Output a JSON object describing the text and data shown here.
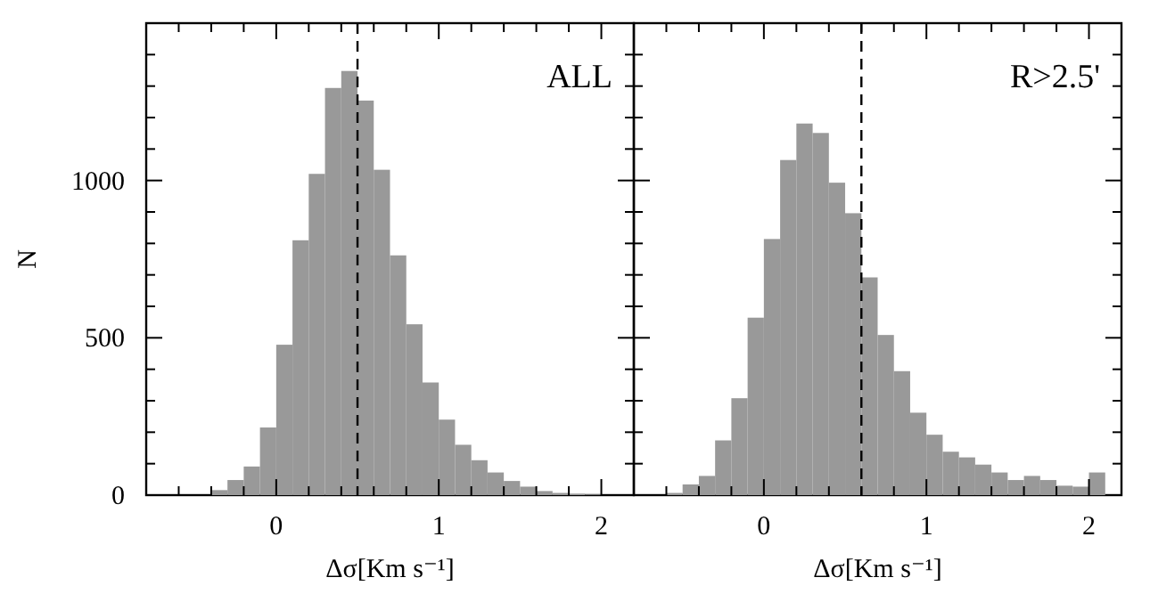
{
  "chart_data": [
    {
      "type": "histogram",
      "xlabel": "Δσ[Km s⁻¹]",
      "ylabel": "N",
      "annotations": [
        "ALL"
      ],
      "bins": [
        -0.4,
        -0.3,
        -0.2,
        -0.1,
        0,
        0.1,
        0.2,
        0.3,
        0.4,
        0.5,
        0.6,
        0.7,
        0.8,
        0.9,
        1.0,
        1.1,
        1.2,
        1.3,
        1.4,
        1.5,
        1.6,
        1.7,
        1.8,
        1.9,
        2.0
      ],
      "values": [
        16,
        48,
        91,
        215,
        478,
        810,
        1021,
        1294,
        1348,
        1254,
        1034,
        762,
        543,
        358,
        240,
        160,
        111,
        72,
        45,
        27,
        13,
        7,
        4,
        2
      ],
      "color": "#999999",
      "xlim": [
        -0.8,
        2.2
      ],
      "ylim": [
        0,
        1500
      ],
      "xticks": [
        {
          "value": -0.6,
          "label": null
        },
        {
          "value": -0.4,
          "label": null
        },
        {
          "value": -0.2,
          "label": null
        },
        0,
        {
          "value": 0.2,
          "label": null
        },
        {
          "value": 0.4,
          "label": null
        },
        {
          "value": 0.6,
          "label": null
        },
        {
          "value": 0.8,
          "label": null
        },
        1,
        {
          "value": 1.2,
          "label": null
        },
        {
          "value": 1.4,
          "label": null
        },
        {
          "value": 1.6,
          "label": null
        },
        {
          "value": 1.8,
          "label": null
        },
        2
      ],
      "yticks": [
        0,
        {
          "value": 100,
          "label": null
        },
        {
          "value": 200,
          "label": null
        },
        {
          "value": 300,
          "label": null
        },
        {
          "value": 400,
          "label": null
        },
        500,
        {
          "value": 600,
          "label": null
        },
        {
          "value": 700,
          "label": null
        },
        {
          "value": 800,
          "label": null
        },
        {
          "value": 900,
          "label": null
        },
        1000,
        {
          "value": 1100,
          "label": null
        },
        {
          "value": 1200,
          "label": null
        },
        {
          "value": 1300,
          "label": null
        },
        {
          "value": 1400,
          "label": null
        }
      ],
      "ref_lines": [
        {
          "axis": "x",
          "value": 0.5,
          "line_style": "dashed",
          "color": "#000000"
        }
      ]
    },
    {
      "type": "histogram",
      "xlabel": "Δσ[Km s⁻¹]",
      "annotations": [
        "R>2.5'"
      ],
      "tick_labels": "x",
      "bins": [
        -0.6,
        -0.5,
        -0.4,
        -0.3,
        -0.2,
        -0.1,
        0,
        0.1,
        0.2,
        0.3,
        0.4,
        0.5,
        0.6,
        0.7,
        0.8,
        0.9,
        1.0,
        1.1,
        1.2,
        1.3,
        1.4,
        1.5,
        1.6,
        1.7,
        1.8,
        1.9,
        2.0,
        2.1
      ],
      "values": [
        7,
        34,
        61,
        174,
        308,
        564,
        814,
        1065,
        1181,
        1151,
        993,
        896,
        692,
        509,
        394,
        262,
        192,
        138,
        120,
        97,
        72,
        48,
        61,
        48,
        30,
        27,
        72
      ],
      "color": "#999999",
      "xlim": [
        -0.8,
        2.2
      ],
      "ylim": [
        0,
        1500
      ],
      "xticks": [
        {
          "value": -0.6,
          "label": null
        },
        {
          "value": -0.4,
          "label": null
        },
        {
          "value": -0.2,
          "label": null
        },
        0,
        {
          "value": 0.2,
          "label": null
        },
        {
          "value": 0.4,
          "label": null
        },
        {
          "value": 0.6,
          "label": null
        },
        {
          "value": 0.8,
          "label": null
        },
        1,
        {
          "value": 1.2,
          "label": null
        },
        {
          "value": 1.4,
          "label": null
        },
        {
          "value": 1.6,
          "label": null
        },
        {
          "value": 1.8,
          "label": null
        },
        2
      ],
      "yticks": [
        0,
        {
          "value": 100,
          "label": null
        },
        {
          "value": 200,
          "label": null
        },
        {
          "value": 300,
          "label": null
        },
        {
          "value": 400,
          "label": null
        },
        500,
        {
          "value": 600,
          "label": null
        },
        {
          "value": 700,
          "label": null
        },
        {
          "value": 800,
          "label": null
        },
        {
          "value": 900,
          "label": null
        },
        1000,
        {
          "value": 1100,
          "label": null
        },
        {
          "value": 1200,
          "label": null
        },
        {
          "value": 1300,
          "label": null
        },
        {
          "value": 1400,
          "label": null
        }
      ],
      "ref_lines": [
        {
          "axis": "x",
          "value": 0.6,
          "line_style": "dashed",
          "color": "#000000"
        }
      ]
    }
  ]
}
